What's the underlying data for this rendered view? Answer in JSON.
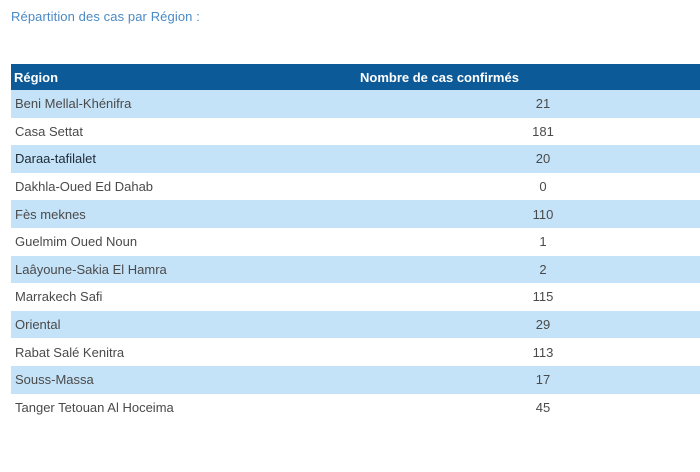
{
  "heading": "Répartition des cas par Région :",
  "table": {
    "headers": [
      "Région",
      "Nombre de cas confirmés"
    ],
    "rows": [
      {
        "region": "Beni Mellal-Khénifra",
        "cases": "21"
      },
      {
        "region": "Casa Settat",
        "cases": "181"
      },
      {
        "region": "Daraa-tafilalet",
        "cases": "20"
      },
      {
        "region": "Dakhla-Oued Ed Dahab",
        "cases": "0"
      },
      {
        "region": "Fès meknes",
        "cases": "110"
      },
      {
        "region": "Guelmim Oued Noun",
        "cases": "1"
      },
      {
        "region": "Laâyoune-Sakia El Hamra",
        "cases": "2"
      },
      {
        "region": "Marrakech Safi",
        "cases": "115"
      },
      {
        "region": "Oriental",
        "cases": "29"
      },
      {
        "region": "Rabat Salé Kenitra",
        "cases": "113"
      },
      {
        "region": "Souss-Massa",
        "cases": "17"
      },
      {
        "region": "Tanger Tetouan Al Hoceima",
        "cases": "45"
      }
    ]
  },
  "colors": {
    "heading_text": "#4a8ac4",
    "header_background": "#0d5a98",
    "stripe_background": "#c5e3f8"
  }
}
